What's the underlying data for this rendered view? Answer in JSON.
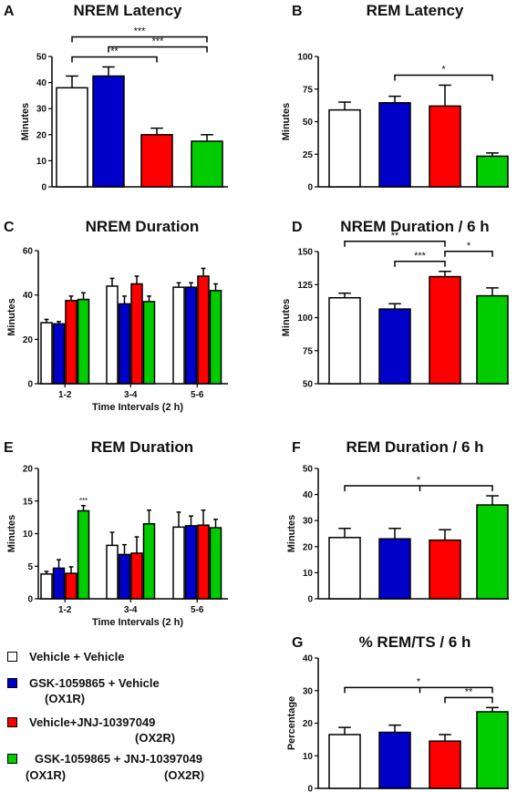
{
  "colors": {
    "vehicle": "#ffffff",
    "ox1r": "#0000c8",
    "ox2r": "#ff0000",
    "dual": "#00cc00"
  },
  "groups": [
    "vehicle",
    "ox1r",
    "ox2r",
    "dual"
  ],
  "legend": {
    "items": [
      {
        "key": "vehicle",
        "label": "Vehicle + Vehicle",
        "sub": []
      },
      {
        "key": "ox1r",
        "label": "GSK-1059865 + Vehicle",
        "sub": [
          "(OX1R)"
        ]
      },
      {
        "key": "ox2r",
        "label": "Vehicle+JNJ-10397049",
        "sub": [
          "(OX2R)"
        ]
      },
      {
        "key": "dual",
        "label": "GSK-1059865 + JNJ-10397049",
        "sub": [
          "(OX1R)",
          "(OX2R)"
        ]
      }
    ]
  },
  "chart_data": [
    {
      "id": "A",
      "letter": "A",
      "title": "NREM Latency",
      "type": "bar",
      "ylabel": "Minutes",
      "xlabel": "",
      "ylim": [
        0,
        50
      ],
      "yticks": [
        0,
        10,
        20,
        30,
        40,
        50
      ],
      "values": [
        38,
        42.5,
        20,
        17.5
      ],
      "errors": [
        4.5,
        3.5,
        2.5,
        2.5
      ],
      "significance": [
        {
          "from": 0,
          "to": 2,
          "label": "**"
        },
        {
          "from": 0,
          "to": 3,
          "label": "***"
        },
        {
          "from": 1,
          "to": 3,
          "label": "***"
        }
      ]
    },
    {
      "id": "B",
      "letter": "B",
      "title": "REM Latency",
      "type": "bar",
      "ylabel": "Minutes",
      "xlabel": "",
      "ylim": [
        0,
        100
      ],
      "yticks": [
        0,
        25,
        50,
        75,
        100
      ],
      "values": [
        59,
        64.5,
        62,
        23.5
      ],
      "errors": [
        6,
        5,
        16,
        2.5
      ],
      "significance": [
        {
          "from": 1,
          "to": 3,
          "label": "*"
        }
      ]
    },
    {
      "id": "C",
      "letter": "C",
      "title": "NREM Duration",
      "type": "bar",
      "ylabel": "Minutes",
      "xlabel": "Time Intervals (2 h)",
      "ylim": [
        0,
        60
      ],
      "yticks": [
        0,
        20,
        40,
        60
      ],
      "categories": [
        "1-2",
        "3-4",
        "5-6"
      ],
      "series": [
        {
          "key": "vehicle",
          "values": [
            27.5,
            44,
            43.5
          ],
          "errors": [
            1.5,
            3.5,
            2
          ]
        },
        {
          "key": "ox1r",
          "values": [
            27,
            36,
            43.5
          ],
          "errors": [
            1,
            3.5,
            2
          ]
        },
        {
          "key": "ox2r",
          "values": [
            37.5,
            45,
            48.5
          ],
          "errors": [
            2,
            3.5,
            3.5
          ]
        },
        {
          "key": "dual",
          "values": [
            38,
            37,
            42
          ],
          "errors": [
            3,
            2.5,
            3
          ]
        }
      ],
      "annotations": []
    },
    {
      "id": "D",
      "letter": "D",
      "title": "NREM Duration / 6 h",
      "type": "bar",
      "ylabel": "Minutes",
      "xlabel": "",
      "ylim": [
        50,
        150
      ],
      "yticks": [
        50,
        75,
        100,
        125,
        150
      ],
      "values": [
        115,
        106.5,
        131,
        116.5
      ],
      "errors": [
        3.5,
        4,
        4,
        6
      ],
      "significance": [
        {
          "from": 0,
          "to": 2,
          "label": "**"
        },
        {
          "from": 1,
          "to": 2,
          "label": "***"
        },
        {
          "from": 2,
          "to": 3,
          "label": "*"
        }
      ]
    },
    {
      "id": "E",
      "letter": "E",
      "title": "REM Duration",
      "type": "bar",
      "ylabel": "Minutes",
      "xlabel": "Time Intervals (2 h)",
      "ylim": [
        0,
        20
      ],
      "yticks": [
        0,
        5,
        10,
        15,
        20
      ],
      "categories": [
        "1-2",
        "3-4",
        "5-6"
      ],
      "series": [
        {
          "key": "vehicle",
          "values": [
            3.8,
            8.2,
            11
          ],
          "errors": [
            0.4,
            2,
            2.3
          ]
        },
        {
          "key": "ox1r",
          "values": [
            4.7,
            6.8,
            11.2
          ],
          "errors": [
            1.3,
            1.5,
            1.5
          ]
        },
        {
          "key": "ox2r",
          "values": [
            3.9,
            7,
            11.3
          ],
          "errors": [
            1,
            2.5,
            2.3
          ]
        },
        {
          "key": "dual",
          "values": [
            13.5,
            11.5,
            10.9
          ],
          "errors": [
            0.8,
            2.1,
            1.3
          ]
        }
      ],
      "annotations": [
        {
          "category": 0,
          "series": 3,
          "label": "***"
        }
      ]
    },
    {
      "id": "F",
      "letter": "F",
      "title": "REM Duration / 6 h",
      "type": "bar",
      "ylabel": "Minutes",
      "xlabel": "",
      "ylim": [
        0,
        50
      ],
      "yticks": [
        0,
        10,
        20,
        30,
        40,
        50
      ],
      "values": [
        23.5,
        23,
        22.5,
        36
      ],
      "errors": [
        3.5,
        4,
        4,
        3.5
      ],
      "significance": [
        {
          "from": 0,
          "to": 3,
          "label": "*",
          "midtick": true
        }
      ]
    },
    {
      "id": "G",
      "letter": "G",
      "title": "% REM/TS / 6 h",
      "type": "bar",
      "ylabel": "Percentage",
      "xlabel": "",
      "ylim": [
        0,
        40
      ],
      "yticks": [
        0,
        10,
        20,
        30,
        40
      ],
      "values": [
        16.5,
        17.2,
        14.5,
        23.5
      ],
      "errors": [
        2.2,
        2.2,
        2,
        1.3
      ],
      "significance": [
        {
          "from": 0,
          "to": 3,
          "label": "*",
          "midtick": true
        },
        {
          "from": 2,
          "to": 3,
          "label": "**"
        }
      ]
    }
  ]
}
